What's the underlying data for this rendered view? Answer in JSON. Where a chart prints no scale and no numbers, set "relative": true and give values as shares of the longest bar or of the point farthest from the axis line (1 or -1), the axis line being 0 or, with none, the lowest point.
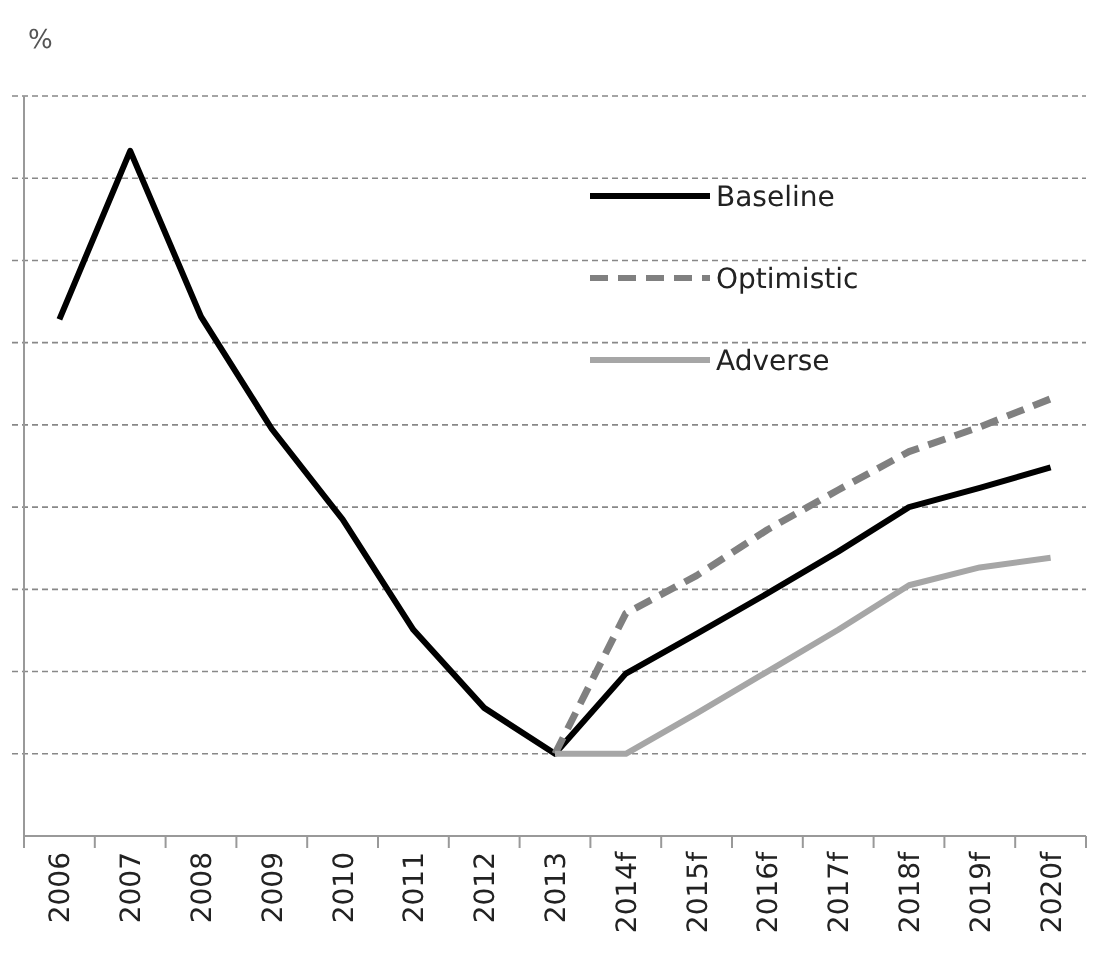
{
  "chart_data": {
    "type": "line",
    "ylabel": "%",
    "relative": true,
    "grid": "y",
    "legend": "top right",
    "categories": [
      "2006",
      "2007",
      "2008",
      "2009",
      "2010",
      "2011",
      "2012",
      "2013",
      "2014f",
      "2015f",
      "2016f",
      "2017f",
      "2018f",
      "2019f",
      "2020f"
    ],
    "series": [
      {
        "name": "Baseline",
        "color": "#000000",
        "line_style": "solid",
        "values": [
          0.754,
          1,
          0.758,
          0.594,
          0.462,
          0.301,
          0.187,
          0.12,
          0.237,
          0.295,
          0.354,
          0.415,
          0.48,
          0.508,
          0.538
        ]
      },
      {
        "name": "Optimistic",
        "color": "#808080",
        "line_style": "dashed",
        "values": [
          null,
          null,
          null,
          null,
          null,
          null,
          null,
          0.12,
          0.325,
          0.38,
          0.447,
          0.505,
          0.561,
          0.597,
          0.638
        ]
      },
      {
        "name": "Adverse",
        "color": "#a6a6a6",
        "line_style": "solid",
        "values": [
          null,
          null,
          null,
          null,
          null,
          null,
          null,
          0.12,
          0.12,
          0.179,
          0.24,
          0.301,
          0.366,
          0.392,
          0.406
        ]
      }
    ]
  }
}
